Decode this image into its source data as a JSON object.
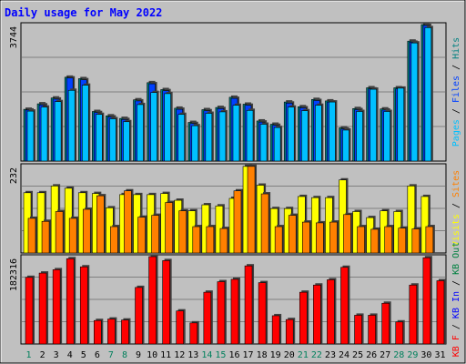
{
  "title": "Daily usage for May 2022",
  "colors": {
    "background": "#C0C0C0",
    "title": "#0000FF",
    "pages": "#00C0FF",
    "files": "#0040FF",
    "hits": "#008080",
    "visits": "#FFFF00",
    "sites": "#FF8000",
    "kb_out": "#008040",
    "kb_in": "#0000FF",
    "kb_f": "#FF0000",
    "weekday_day": "#000000",
    "weekend_day": "#00805C"
  },
  "chart_data": [
    {
      "type": "bar",
      "max_label": "3744",
      "ylim": [
        0,
        3744
      ],
      "grid": true,
      "legend": [
        {
          "key": "pages",
          "label": "Pages"
        },
        {
          "key": "files",
          "label": "Files"
        },
        {
          "key": "hits",
          "label": "Hits"
        }
      ],
      "series": [
        {
          "name": "Hits",
          "key": "hits",
          "values": [
            1420,
            1570,
            1730,
            2300,
            2260,
            1360,
            1240,
            1170,
            1680,
            2150,
            1960,
            1450,
            1060,
            1410,
            1470,
            1750,
            1560,
            1100,
            1010,
            1620,
            1490,
            1690,
            1650,
            910,
            1440,
            2010,
            1430,
            2010,
            3290,
            3744,
            0
          ]
        },
        {
          "name": "Files",
          "key": "files",
          "values": [
            1400,
            1540,
            1700,
            2280,
            2230,
            1330,
            1210,
            1140,
            1650,
            2120,
            1930,
            1420,
            1030,
            1380,
            1440,
            1720,
            1530,
            1070,
            980,
            1590,
            1460,
            1660,
            1620,
            880,
            1410,
            1980,
            1400,
            1980,
            3260,
            3720,
            0
          ]
        },
        {
          "name": "Pages",
          "key": "pages",
          "values": [
            1370,
            1480,
            1630,
            1940,
            2080,
            1280,
            1160,
            1080,
            1550,
            1880,
            1850,
            1280,
            970,
            1310,
            1350,
            1530,
            1390,
            1010,
            920,
            1480,
            1380,
            1530,
            1620,
            850,
            1360,
            1970,
            1360,
            2000,
            3240,
            3660,
            0
          ]
        }
      ]
    },
    {
      "type": "bar",
      "max_label": "232",
      "ylim": [
        0,
        232
      ],
      "grid": true,
      "legend": [
        {
          "key": "visits",
          "label": "Visits"
        },
        {
          "key": "sites",
          "label": "Sites"
        }
      ],
      "series": [
        {
          "name": "Visits",
          "key": "visits",
          "values": [
            160,
            160,
            178,
            172,
            160,
            158,
            120,
            155,
            155,
            155,
            158,
            140,
            112,
            128,
            125,
            145,
            230,
            180,
            118,
            118,
            150,
            147,
            147,
            194,
            110,
            94,
            112,
            110,
            178,
            150,
            0
          ]
        },
        {
          "name": "Sites",
          "key": "sites",
          "values": [
            92,
            84,
            110,
            92,
            116,
            152,
            70,
            165,
            95,
            100,
            134,
            112,
            70,
            70,
            65,
            165,
            230,
            157,
            70,
            100,
            82,
            80,
            82,
            102,
            70,
            63,
            70,
            66,
            64,
            70,
            0
          ]
        }
      ]
    },
    {
      "type": "bar",
      "max_label": "182316",
      "ylim": [
        0,
        182316
      ],
      "grid": true,
      "legend": [
        {
          "key": "kb_f",
          "label": "KB F"
        },
        {
          "key": "kb_in",
          "label": "KB In"
        },
        {
          "key": "kb_out",
          "label": "KB Out"
        }
      ],
      "series": [
        {
          "name": "KB F",
          "key": "kb_f",
          "values": [
            139000,
            148000,
            155000,
            178000,
            161000,
            49000,
            52000,
            50000,
            118000,
            182316,
            174000,
            69000,
            44000,
            108000,
            130000,
            135000,
            163000,
            128000,
            59000,
            51000,
            108000,
            123000,
            134000,
            160000,
            60000,
            60000,
            85000,
            46000,
            123000,
            180000,
            132000
          ]
        }
      ]
    }
  ],
  "x_axis": {
    "days": [
      "1",
      "2",
      "3",
      "4",
      "5",
      "6",
      "7",
      "8",
      "9",
      "10",
      "11",
      "12",
      "13",
      "14",
      "15",
      "16",
      "17",
      "18",
      "19",
      "20",
      "21",
      "22",
      "23",
      "24",
      "25",
      "26",
      "27",
      "28",
      "29",
      "30",
      "31"
    ],
    "weekend": [
      1,
      7,
      8,
      14,
      15,
      21,
      22,
      28,
      29
    ]
  }
}
